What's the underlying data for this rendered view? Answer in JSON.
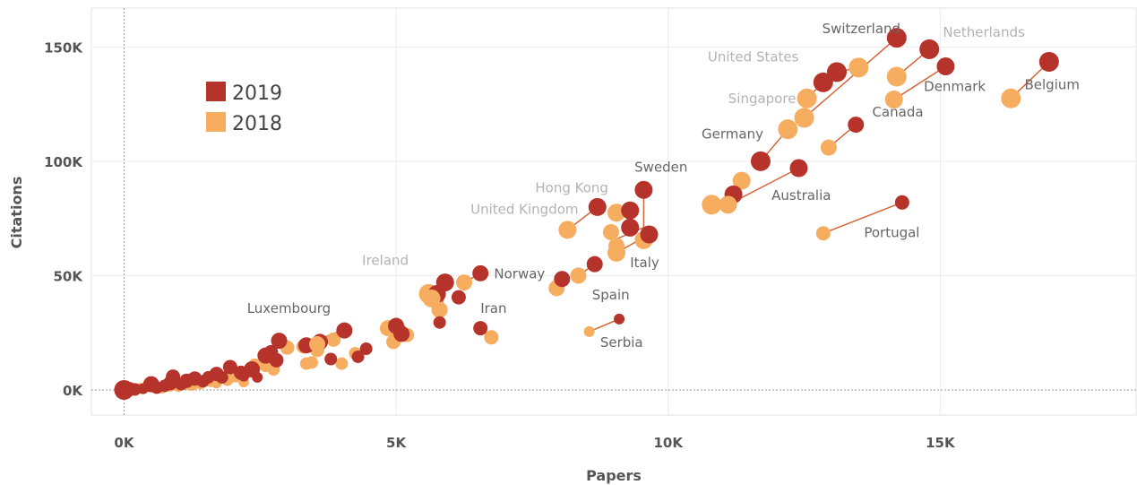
{
  "chart_data": {
    "type": "scatter",
    "title": "",
    "xlabel": "Papers",
    "ylabel": "Citations",
    "xlim": [
      -600,
      18600
    ],
    "ylim": [
      -11000,
      167000
    ],
    "x_ticks": [
      0,
      5000,
      10000,
      15000
    ],
    "x_tick_labels": [
      "0K",
      "5K",
      "10K",
      "15K"
    ],
    "y_ticks": [
      0,
      50000,
      100000,
      150000
    ],
    "y_tick_labels": [
      "0K",
      "50K",
      "100K",
      "150K"
    ],
    "grid": true,
    "legend_position": "top-left",
    "colors": {
      "2019": "#b5332a",
      "2018": "#f6ad5f",
      "connector": "#d4673a",
      "label_dark": "#666666",
      "label_light": "#b3b3b3"
    },
    "series": [
      {
        "name": "2019",
        "color": "#b5332a"
      },
      {
        "name": "2018",
        "color": "#f6ad5f"
      }
    ],
    "labeled_countries": [
      {
        "name": "Switzerland",
        "p2018": [
          12500,
          119000
        ],
        "p2019": [
          14200,
          154000
        ],
        "size": 11,
        "label_pos": [
          13550,
          156000
        ],
        "tone": "dark",
        "anchor": "middle"
      },
      {
        "name": "Netherlands",
        "p2018": [
          14200,
          137000
        ],
        "p2019": [
          14800,
          149000
        ],
        "size": 11,
        "label_pos": [
          15050,
          154500
        ],
        "tone": "light",
        "anchor": "start"
      },
      {
        "name": "United States",
        "p2018": [
          13500,
          141000
        ],
        "p2019": [
          13100,
          139000
        ],
        "size": 11,
        "label_pos": [
          12400,
          143700
        ],
        "tone": "light",
        "anchor": "end"
      },
      {
        "name": "Denmark",
        "p2018": [
          14150,
          127000
        ],
        "p2019": [
          15100,
          141500
        ],
        "size": 10,
        "label_pos": [
          14700,
          130800
        ],
        "tone": "dark",
        "anchor": "start"
      },
      {
        "name": "Belgium",
        "p2018": [
          16300,
          127500
        ],
        "p2019": [
          17000,
          143500
        ],
        "size": 11,
        "label_pos": [
          16550,
          131500
        ],
        "tone": "dark",
        "anchor": "start"
      },
      {
        "name": "Singapore",
        "p2018": [
          12550,
          127500
        ],
        "p2019": [
          12850,
          134500
        ],
        "size": 11,
        "label_pos": [
          12350,
          125500
        ],
        "tone": "light",
        "anchor": "end"
      },
      {
        "name": "Germany",
        "p2018": [
          12200,
          114000
        ],
        "p2019": [
          11700,
          100000
        ],
        "size": 11,
        "label_pos": [
          11750,
          110000
        ],
        "tone": "dark",
        "anchor": "end"
      },
      {
        "name": "Canada",
        "p2018": [
          12950,
          106000
        ],
        "p2019": [
          13450,
          116000
        ],
        "size": 9,
        "label_pos": [
          13750,
          119500
        ],
        "tone": "dark",
        "anchor": "start"
      },
      {
        "name": "Sweden",
        "p2018": [
          9550,
          65500
        ],
        "p2019": [
          9550,
          87500
        ],
        "size": 10,
        "label_pos": [
          9380,
          95500
        ],
        "tone": "dark",
        "anchor": "start"
      },
      {
        "name": "Hong Kong",
        "p2018": [
          9050,
          77500
        ],
        "p2019": [
          9300,
          78500
        ],
        "size": 10,
        "label_pos": [
          8900,
          86500
        ],
        "tone": "light",
        "anchor": "end"
      },
      {
        "name": "United Kingdom",
        "p2018": [
          8150,
          70000
        ],
        "p2019": [
          8700,
          80000
        ],
        "size": 10,
        "label_pos": [
          8350,
          77000
        ],
        "tone": "light",
        "anchor": "end"
      },
      {
        "name": "Australia",
        "p2018": [
          11100,
          81000
        ],
        "p2019": [
          12400,
          97000
        ],
        "size": 10,
        "label_pos": [
          11900,
          83000
        ],
        "tone": "dark",
        "anchor": "start"
      },
      {
        "name": "Italy",
        "p2018": [
          9050,
          60000
        ],
        "p2019": [
          9650,
          68000
        ],
        "size": 10,
        "label_pos": [
          9300,
          53700
        ],
        "tone": "dark",
        "anchor": "start"
      },
      {
        "name": "Spain",
        "p2018": [
          8350,
          50000
        ],
        "p2019": [
          8650,
          55000
        ],
        "size": 9,
        "label_pos": [
          8600,
          39500
        ],
        "tone": "dark",
        "anchor": "start"
      },
      {
        "name": "Portugal",
        "p2018": [
          12850,
          68500
        ],
        "p2019": [
          14300,
          82000
        ],
        "size": 8,
        "label_pos": [
          13600,
          66800
        ],
        "tone": "dark",
        "anchor": "start"
      },
      {
        "name": "Serbia",
        "p2018": [
          8550,
          25500
        ],
        "p2019": [
          9100,
          31000
        ],
        "size": 6,
        "label_pos": [
          8750,
          18800
        ],
        "tone": "dark",
        "anchor": "start"
      },
      {
        "name": "Norway",
        "p2018": [
          6250,
          47000
        ],
        "p2019": [
          6550,
          51000
        ],
        "size": 9,
        "label_pos": [
          6800,
          48700
        ],
        "tone": "dark",
        "anchor": "start"
      },
      {
        "name": "Ireland",
        "p2018": [
          5650,
          40000
        ],
        "p2019": [
          5900,
          47000
        ],
        "size": 10,
        "label_pos": [
          5230,
          54700
        ],
        "tone": "light",
        "anchor": "end"
      },
      {
        "name": "Iran",
        "p2018": [
          6750,
          23000
        ],
        "p2019": [
          6550,
          27000
        ],
        "size": 8,
        "label_pos": [
          6550,
          33700
        ],
        "tone": "dark",
        "anchor": "start"
      },
      {
        "name": "Luxembourg",
        "p2018": [
          3550,
          20000
        ],
        "p2019": [
          4050,
          26000
        ],
        "size": 9,
        "label_pos": [
          3800,
          33700
        ],
        "tone": "dark",
        "anchor": "end"
      }
    ],
    "unlabeled_points_2019": [
      [
        0,
        0,
        11
      ],
      [
        100,
        300,
        8
      ],
      [
        200,
        200,
        7
      ],
      [
        350,
        500,
        6
      ],
      [
        500,
        2500,
        9
      ],
      [
        600,
        1000,
        7
      ],
      [
        750,
        1800,
        7
      ],
      [
        850,
        3000,
        8
      ],
      [
        900,
        5800,
        8
      ],
      [
        1050,
        2500,
        7
      ],
      [
        1150,
        4000,
        8
      ],
      [
        1300,
        5000,
        8
      ],
      [
        1450,
        3800,
        7
      ],
      [
        1550,
        5500,
        7
      ],
      [
        1700,
        7000,
        8
      ],
      [
        1800,
        5500,
        7
      ],
      [
        1950,
        10000,
        8
      ],
      [
        2150,
        7500,
        8
      ],
      [
        2200,
        6000,
        6
      ],
      [
        2350,
        9000,
        9
      ],
      [
        2450,
        5500,
        6
      ],
      [
        2600,
        15000,
        9
      ],
      [
        2700,
        16500,
        8
      ],
      [
        2800,
        13000,
        8
      ],
      [
        2850,
        21500,
        9
      ],
      [
        3350,
        19500,
        9
      ],
      [
        3600,
        21000,
        9
      ],
      [
        3800,
        13500,
        7
      ],
      [
        4300,
        14500,
        7
      ],
      [
        4450,
        18000,
        7
      ],
      [
        5000,
        28000,
        9
      ],
      [
        5100,
        24500,
        9
      ],
      [
        5750,
        42000,
        10
      ],
      [
        5800,
        29500,
        7
      ],
      [
        6150,
        40500,
        8
      ],
      [
        9300,
        71000,
        10
      ],
      [
        8050,
        48500,
        9
      ],
      [
        11200,
        85500,
        10
      ]
    ],
    "unlabeled_points_2018": [
      [
        0,
        0,
        8
      ],
      [
        150,
        300,
        6
      ],
      [
        300,
        700,
        6
      ],
      [
        400,
        1200,
        6
      ],
      [
        550,
        1500,
        6
      ],
      [
        700,
        800,
        6
      ],
      [
        850,
        2000,
        7
      ],
      [
        1000,
        1500,
        6
      ],
      [
        1150,
        2800,
        7
      ],
      [
        1250,
        2000,
        6
      ],
      [
        1400,
        3000,
        7
      ],
      [
        1600,
        4000,
        7
      ],
      [
        1700,
        3000,
        6
      ],
      [
        1900,
        4500,
        7
      ],
      [
        2050,
        6000,
        7
      ],
      [
        2200,
        3500,
        6
      ],
      [
        2300,
        8000,
        7
      ],
      [
        2400,
        11000,
        7
      ],
      [
        2600,
        10500,
        7
      ],
      [
        2750,
        9000,
        7
      ],
      [
        3000,
        18500,
        8
      ],
      [
        3300,
        19000,
        8
      ],
      [
        3350,
        11500,
        7
      ],
      [
        3450,
        12000,
        7
      ],
      [
        3550,
        17500,
        8
      ],
      [
        3850,
        22000,
        8
      ],
      [
        4000,
        11500,
        7
      ],
      [
        4250,
        16000,
        7
      ],
      [
        4850,
        27000,
        9
      ],
      [
        4950,
        21000,
        8
      ],
      [
        5050,
        26500,
        8
      ],
      [
        5200,
        24000,
        8
      ],
      [
        5600,
        42000,
        11
      ],
      [
        5800,
        35000,
        9
      ],
      [
        7950,
        44500,
        9
      ],
      [
        8950,
        69000,
        9
      ],
      [
        9050,
        63000,
        9
      ],
      [
        10800,
        81000,
        11
      ],
      [
        11350,
        91500,
        10
      ]
    ],
    "connectors": [
      [
        [
          0,
          0
        ],
        [
          2200,
          9000
        ]
      ],
      [
        [
          1000,
          2000
        ],
        [
          2700,
          12000
        ]
      ],
      [
        [
          2000,
          6000
        ],
        [
          2900,
          13000
        ]
      ],
      [
        [
          3300,
          19500
        ],
        [
          4000,
          26000
        ]
      ],
      [
        [
          4300,
          14500
        ],
        [
          4450,
          18000
        ]
      ],
      [
        [
          4900,
          24000
        ],
        [
          5150,
          26000
        ]
      ],
      [
        [
          5800,
          34000
        ],
        [
          5900,
          43000
        ]
      ],
      [
        [
          7950,
          45500
        ],
        [
          8050,
          48500
        ]
      ],
      [
        [
          9050,
          66000
        ],
        [
          9550,
          71000
        ]
      ]
    ]
  }
}
